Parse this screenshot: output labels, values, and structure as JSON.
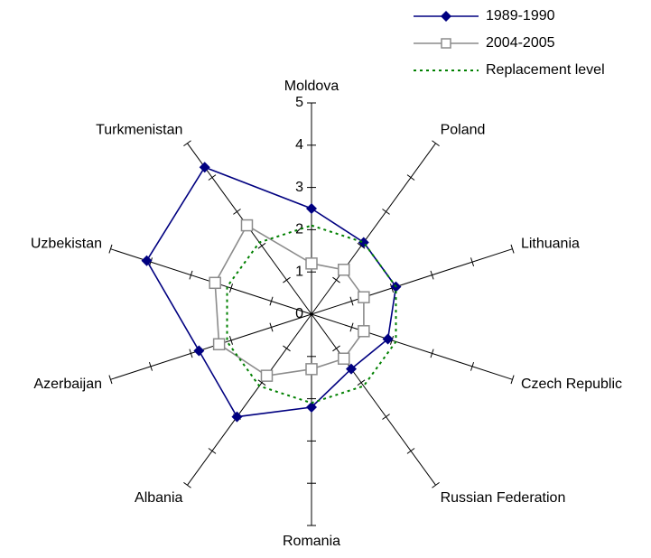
{
  "chart_data": {
    "type": "radar",
    "categories": [
      "Moldova",
      "Poland",
      "Lithuania",
      "Czech Republic",
      "Russian Federation",
      "Romania",
      "Albania",
      "Azerbaijan",
      "Uzbekistan",
      "Turkmenistan"
    ],
    "ylim": [
      0,
      5
    ],
    "yticks": [
      0,
      1,
      2,
      3,
      4,
      5
    ],
    "series": [
      {
        "name": "1989-1990",
        "color": "#000080",
        "marker": "diamond",
        "values": [
          2.5,
          2.1,
          2.1,
          1.9,
          1.6,
          2.2,
          3.0,
          2.8,
          4.1,
          4.3
        ]
      },
      {
        "name": "2004-2005",
        "color": "#8c8c8c",
        "marker": "square",
        "values": [
          1.2,
          1.3,
          1.3,
          1.3,
          1.3,
          1.3,
          1.8,
          2.3,
          2.4,
          2.6
        ]
      },
      {
        "name": "Replacement level",
        "color": "#008000",
        "dashed": true,
        "values": [
          2.1,
          2.1,
          2.1,
          2.1,
          2.1,
          2.1,
          2.1,
          2.1,
          2.1,
          2.1
        ]
      }
    ]
  }
}
